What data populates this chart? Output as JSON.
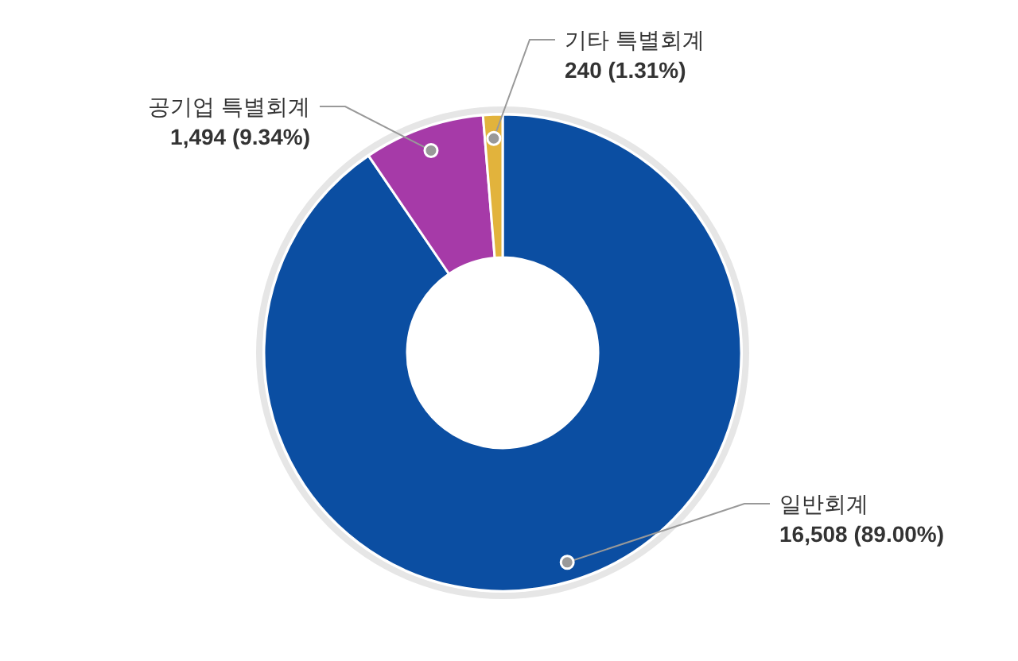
{
  "chart_data": {
    "type": "donut",
    "categories": [
      "일반회계",
      "공기업 특별회계",
      "기타 특별회계"
    ],
    "values": [
      16508,
      1494,
      240
    ],
    "colors": [
      "#0b4ea2",
      "#a63aa8",
      "#e2b33c"
    ],
    "value_labels": [
      "16,508 (89.00%)",
      "1,494 (9.34%)",
      "240 (1.31%)"
    ]
  }
}
